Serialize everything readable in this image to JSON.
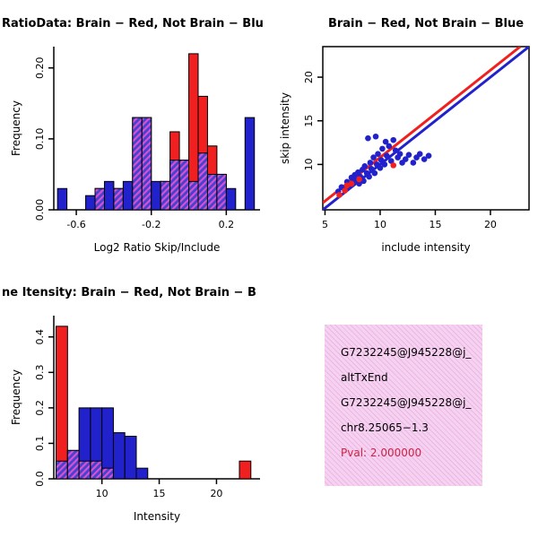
{
  "window": {
    "background": "#ffffff"
  },
  "colors": {
    "red": "#F02020",
    "blue": "#2222CC",
    "hatch_base": "#4343CF",
    "hatch_stripe": "#D94FD1",
    "axis": "#000000",
    "pval": "#CC2244"
  },
  "chart_data": [
    {
      "id": "ratio-hist",
      "type": "bar",
      "title": "RatioData: Brain − Red, Not Brain − Blu",
      "title_align": "left",
      "xlabel": "Log2 Ratio Skip/Include",
      "ylabel": "Frequency",
      "xlim": [
        -0.72,
        0.38
      ],
      "ylim": [
        0,
        0.23
      ],
      "grid": false,
      "xticks": [
        {
          "v": -0.6,
          "label": "-0.6"
        },
        {
          "v": -0.2,
          "label": "-0.2"
        },
        {
          "v": 0.2,
          "label": "0.2"
        }
      ],
      "yticks": [
        {
          "v": 0,
          "label": "0.00"
        },
        {
          "v": 0.1,
          "label": "0.10"
        },
        {
          "v": 0.2,
          "label": "0.20"
        }
      ],
      "bin_width": 0.05,
      "bins": [
        {
          "x": -0.7,
          "red": 0,
          "blue": 0.03
        },
        {
          "x": -0.55,
          "red": 0,
          "blue": 0.02
        },
        {
          "x": -0.5,
          "red": 0.03,
          "blue": 0.03
        },
        {
          "x": -0.45,
          "red": 0,
          "blue": 0.04
        },
        {
          "x": -0.4,
          "red": 0.03,
          "blue": 0.03
        },
        {
          "x": -0.35,
          "red": 0,
          "blue": 0.04
        },
        {
          "x": -0.3,
          "red": 0.13,
          "blue": 0.13
        },
        {
          "x": -0.25,
          "red": 0.13,
          "blue": 0.13
        },
        {
          "x": -0.2,
          "red": 0,
          "blue": 0.04
        },
        {
          "x": -0.15,
          "red": 0.04,
          "blue": 0.04
        },
        {
          "x": -0.1,
          "red": 0.11,
          "blue": 0.07
        },
        {
          "x": -0.05,
          "red": 0.07,
          "blue": 0.07
        },
        {
          "x": 0.0,
          "red": 0.22,
          "blue": 0.04
        },
        {
          "x": 0.05,
          "red": 0.16,
          "blue": 0.08
        },
        {
          "x": 0.1,
          "red": 0.09,
          "blue": 0.05
        },
        {
          "x": 0.15,
          "red": 0.05,
          "blue": 0.05
        },
        {
          "x": 0.2,
          "red": 0,
          "blue": 0.03
        },
        {
          "x": 0.3,
          "red": 0,
          "blue": 0.13
        }
      ]
    },
    {
      "id": "intensity-scatter",
      "type": "scatter",
      "title": "Brain − Red, Not Brain − Blue",
      "title_align": "center",
      "xlabel": "include intensity",
      "ylabel": "skip intensity",
      "xlim": [
        4.8,
        23.5
      ],
      "ylim": [
        4.8,
        23.5
      ],
      "grid": false,
      "xticks": [
        {
          "v": 5,
          "label": "5"
        },
        {
          "v": 10,
          "label": "10"
        },
        {
          "v": 15,
          "label": "15"
        },
        {
          "v": 20,
          "label": "20"
        }
      ],
      "yticks": [
        {
          "v": 10,
          "label": "10"
        },
        {
          "v": 15,
          "label": "15"
        },
        {
          "v": 20,
          "label": "20"
        }
      ],
      "lines": [
        {
          "name": "not-brain-fit",
          "color": "blue",
          "x1": 4.8,
          "y1": 4.8,
          "x2": 23.5,
          "y2": 23.5
        },
        {
          "name": "brain-fit",
          "color": "red",
          "x1": 4.8,
          "y1": 5.6,
          "x2": 22.7,
          "y2": 23.5
        }
      ],
      "series": [
        {
          "name": "not-brain",
          "color": "blue",
          "points": [
            [
              6.2,
              6.9
            ],
            [
              6.5,
              7.4
            ],
            [
              6.8,
              7.1
            ],
            [
              7.0,
              8.0
            ],
            [
              7.2,
              7.6
            ],
            [
              7.4,
              8.5
            ],
            [
              7.5,
              7.9
            ],
            [
              7.7,
              8.8
            ],
            [
              7.8,
              8.2
            ],
            [
              8.0,
              9.1
            ],
            [
              8.1,
              7.8
            ],
            [
              8.2,
              8.6
            ],
            [
              8.4,
              9.4
            ],
            [
              8.5,
              8.1
            ],
            [
              8.6,
              9.8
            ],
            [
              8.8,
              9.0
            ],
            [
              8.9,
              13.0
            ],
            [
              9.0,
              8.6
            ],
            [
              9.1,
              10.2
            ],
            [
              9.2,
              9.5
            ],
            [
              9.4,
              10.8
            ],
            [
              9.5,
              9.0
            ],
            [
              9.6,
              13.2
            ],
            [
              9.7,
              10.0
            ],
            [
              9.8,
              11.2
            ],
            [
              10.0,
              9.6
            ],
            [
              10.1,
              10.5
            ],
            [
              10.2,
              11.8
            ],
            [
              10.4,
              10.0
            ],
            [
              10.5,
              12.6
            ],
            [
              10.6,
              11.0
            ],
            [
              10.8,
              12.1
            ],
            [
              11.0,
              10.4
            ],
            [
              11.2,
              12.8
            ],
            [
              11.4,
              11.6
            ],
            [
              11.6,
              10.8
            ],
            [
              11.8,
              11.2
            ],
            [
              12.0,
              10.2
            ],
            [
              12.3,
              10.6
            ],
            [
              12.6,
              11.1
            ],
            [
              13.0,
              10.2
            ],
            [
              13.3,
              10.8
            ],
            [
              13.6,
              11.2
            ],
            [
              14.0,
              10.6
            ],
            [
              14.4,
              11.0
            ]
          ]
        },
        {
          "name": "brain",
          "color": "red",
          "points": [
            [
              6.3,
              6.5
            ],
            [
              6.8,
              7.0
            ],
            [
              7.0,
              7.6
            ],
            [
              7.4,
              7.8
            ],
            [
              8.1,
              8.3
            ],
            [
              11.2,
              9.9
            ]
          ]
        }
      ]
    },
    {
      "id": "gene-intensity-hist",
      "type": "bar",
      "title": "ne Itensity: Brain − Red, Not Brain − B",
      "title_align": "left",
      "xlabel": "Intensity",
      "ylabel": "Frequency",
      "xlim": [
        5.8,
        23.8
      ],
      "ylim": [
        0,
        0.46
      ],
      "grid": false,
      "xticks": [
        {
          "v": 10,
          "label": "10"
        },
        {
          "v": 15,
          "label": "15"
        },
        {
          "v": 20,
          "label": "20"
        }
      ],
      "yticks": [
        {
          "v": 0,
          "label": "0.0"
        },
        {
          "v": 0.1,
          "label": "0.1"
        },
        {
          "v": 0.2,
          "label": "0.2"
        },
        {
          "v": 0.3,
          "label": "0.3"
        },
        {
          "v": 0.4,
          "label": "0.4"
        }
      ],
      "bin_width": 1,
      "bins": [
        {
          "x": 6,
          "red": 0.43,
          "blue": 0.05
        },
        {
          "x": 7,
          "red": 0.08,
          "blue": 0.08
        },
        {
          "x": 8,
          "red": 0.05,
          "blue": 0.2
        },
        {
          "x": 9,
          "red": 0.05,
          "blue": 0.2
        },
        {
          "x": 10,
          "red": 0.03,
          "blue": 0.2
        },
        {
          "x": 11,
          "red": 0,
          "blue": 0.13
        },
        {
          "x": 12,
          "red": 0,
          "blue": 0.12
        },
        {
          "x": 13,
          "red": 0,
          "blue": 0.03
        },
        {
          "x": 22,
          "red": 0.05,
          "blue": 0
        }
      ]
    }
  ],
  "info_box": {
    "bg": "#F6D2F1",
    "stripe": "#ECB7E5",
    "lines": [
      {
        "text": "G7232245@J945228@j_",
        "color": "#000000"
      },
      {
        "text": "altTxEnd",
        "color": "#000000"
      },
      {
        "text": "G7232245@J945228@j_",
        "color": "#000000"
      },
      {
        "text": "chr8.25065−1.3",
        "color": "#000000"
      },
      {
        "text": "Pval: 2.000000",
        "color": "#CC2244"
      }
    ]
  }
}
